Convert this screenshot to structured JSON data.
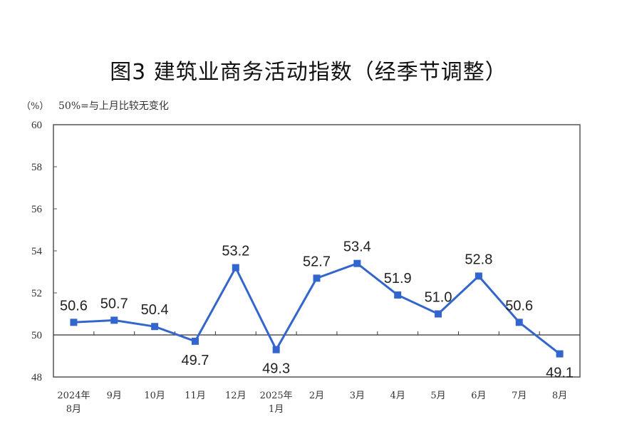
{
  "header": {
    "title": "图3  建筑业商务活动指数（经季节调整）",
    "unit": "（%）",
    "note": "50%=与上月比较无变化"
  },
  "colors": {
    "line": "#3366CC",
    "axis": "#555555",
    "reference_line": "#333333"
  },
  "chart_data": {
    "type": "line",
    "title": "图3 建筑业商务活动指数（经季节调整）",
    "subtitle": "50%=与上月比较无变化",
    "xlabel": "",
    "ylabel": "（%）",
    "ylim": [
      48,
      60
    ],
    "yticks": [
      48,
      50,
      52,
      54,
      56,
      58,
      60
    ],
    "reference_line": 50,
    "grid": false,
    "legend": null,
    "categories": [
      "2024年8月",
      "9月",
      "10月",
      "11月",
      "12月",
      "2025年1月",
      "2月",
      "3月",
      "4月",
      "5月",
      "6月",
      "7月",
      "8月"
    ],
    "category_lines": [
      [
        "2024年",
        "8月"
      ],
      [
        "9月"
      ],
      [
        "10月"
      ],
      [
        "11月"
      ],
      [
        "12月"
      ],
      [
        "2025年",
        "1月"
      ],
      [
        "2月"
      ],
      [
        "3月"
      ],
      [
        "4月"
      ],
      [
        "5月"
      ],
      [
        "6月"
      ],
      [
        "7月"
      ],
      [
        "8月"
      ]
    ],
    "series": [
      {
        "name": "建筑业商务活动指数",
        "values": [
          50.6,
          50.7,
          50.4,
          49.7,
          53.2,
          49.3,
          52.7,
          53.4,
          51.9,
          51.0,
          52.8,
          50.6,
          49.1
        ],
        "labels": [
          "50.6",
          "50.7",
          "50.4",
          "49.7",
          "53.2",
          "49.3",
          "52.7",
          "53.4",
          "51.9",
          "51.0",
          "52.8",
          "50.6",
          "49.1"
        ],
        "label_position": [
          "above",
          "above",
          "above",
          "below",
          "above",
          "below",
          "above",
          "above",
          "above",
          "above",
          "above",
          "above",
          "below"
        ],
        "marker": "square"
      }
    ]
  }
}
